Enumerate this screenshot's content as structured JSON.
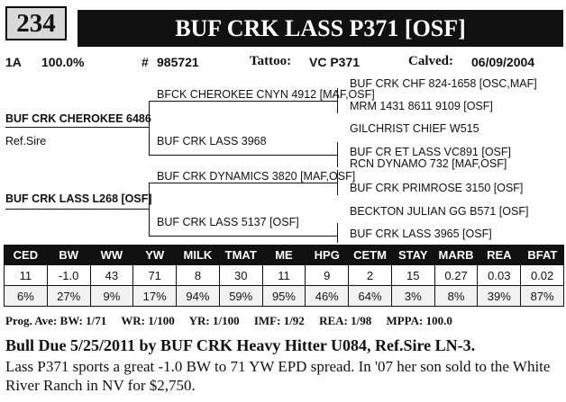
{
  "lot_number": "234",
  "animal_name": "BUF CRK LASS P371 [OSF]",
  "info": {
    "group": "1A",
    "percent": "100.0%",
    "reg_label": "#",
    "reg_number": "985721",
    "tattoo_label": "Tattoo:",
    "tattoo": "VC P371",
    "calved_label": "Calved:",
    "calved": "06/09/2004"
  },
  "pedigree": {
    "sire": "BUF CRK CHEROKEE 6486",
    "sire_note": "Ref.Sire",
    "dam": "BUF CRK LASS L268 [OSF]",
    "sire_sire": "BFCK CHEROKEE CNYN 4912 [MAF,OSF]",
    "sire_dam": "BUF CRK LASS 3968",
    "dam_sire": "BUF CRK DYNAMICS 3820 [MAF,OSF]",
    "dam_dam": "BUF CRK LASS 5137 [OSF]",
    "ss_sire": "BUF CRK CHF 824-1658 [OSC,MAF]",
    "ss_dam": "MRM 1431 8611 9109 [OSF]",
    "sd_sire": "GILCHRIST CHIEF W515",
    "sd_dam": "BUF CR ET LASS VC891 [OSF]",
    "ds_sire": "RCN DYNAMO 732 [MAF,OSF]",
    "ds_dam": "BUF CRK PRIMROSE 3150 [OSF]",
    "dd_sire": "BECKTON JULIAN GG B571 [OSF]",
    "dd_dam": "BUF CRK LASS 3965 [OSF]"
  },
  "epd": {
    "headers": [
      "CED",
      "BW",
      "WW",
      "YW",
      "MILK",
      "TMAT",
      "ME",
      "HPG",
      "CETM",
      "STAY",
      "MARB",
      "REA",
      "BFAT"
    ],
    "values": [
      "11",
      "-1.0",
      "43",
      "71",
      "8",
      "30",
      "11",
      "9",
      "2",
      "15",
      "0.27",
      "0.03",
      "0.02"
    ],
    "percentiles": [
      "6%",
      "27%",
      "9%",
      "17%",
      "94%",
      "59%",
      "95%",
      "46%",
      "64%",
      "3%",
      "8%",
      "39%",
      "87%"
    ]
  },
  "progeny": {
    "label": "Prog. Ave:",
    "bw_label": "BW:",
    "bw": "1/71",
    "wr_label": "WR:",
    "wr": "1/100",
    "yr_label": "YR:",
    "yr": "1/100",
    "imf_label": "IMF:",
    "imf": "1/92",
    "rea_label": "REA:",
    "rea": "1/98",
    "mppa_label": "MPPA:",
    "mppa": "100.0"
  },
  "headline": "Bull Due 5/25/2011 by BUF CRK Heavy Hitter U084, Ref.Sire LN-3.",
  "description": "Lass P371 sports a great -1.0 BW to 71 YW EPD spread.  In '07 her son sold to the White River Ranch in NV for $2,750."
}
